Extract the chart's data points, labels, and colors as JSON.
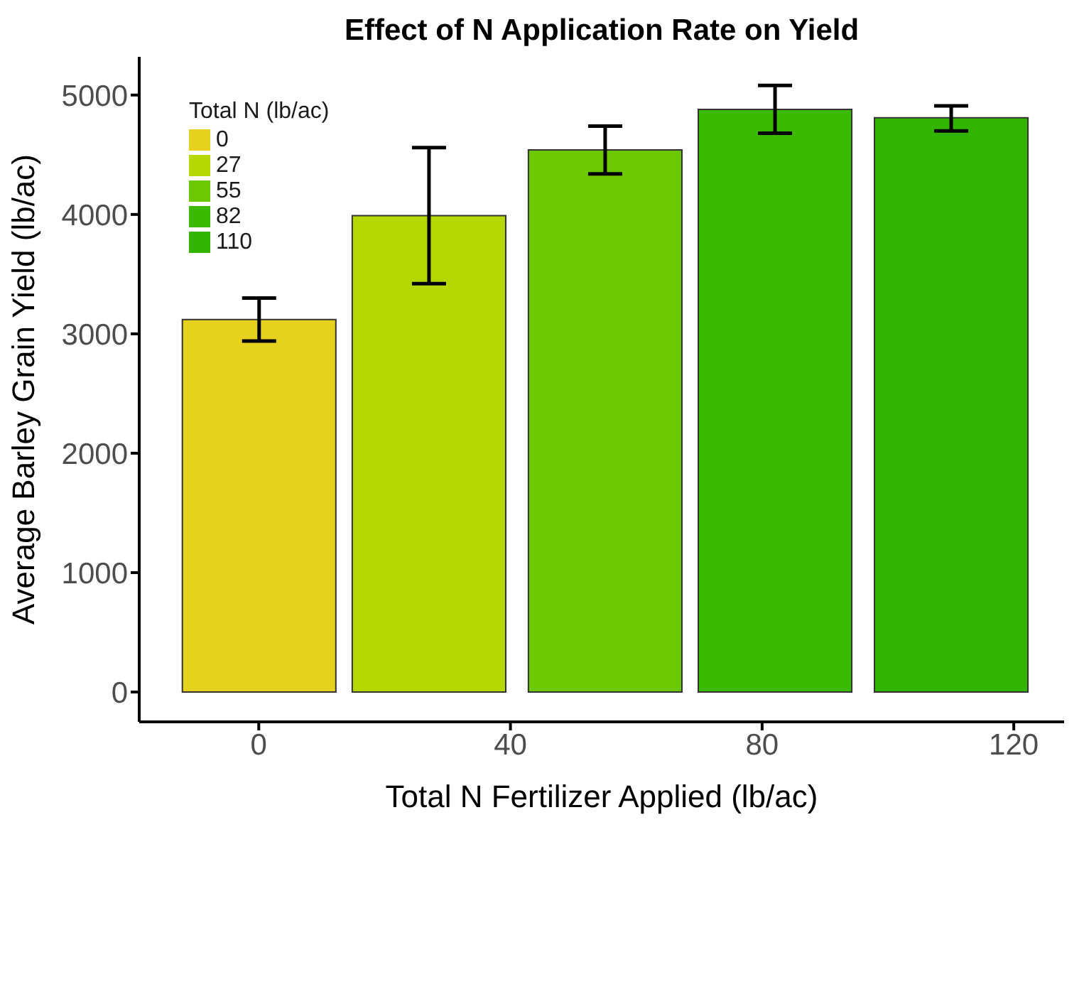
{
  "chart_data": {
    "type": "bar",
    "title": "Effect of N Application Rate on Yield",
    "xlabel": "Total N Fertilizer Applied (lb/ac)",
    "ylabel": "Average Barley Grain Yield (lb/ac)",
    "legend_title": "Total N (lb/ac)",
    "legend": "top left",
    "grid": false,
    "series": [
      {
        "name": "0",
        "color": "#e5d11e",
        "x": [
          0
        ],
        "values": [
          3120
        ],
        "errors": [
          [
            2940,
            3300
          ]
        ]
      },
      {
        "name": "27",
        "color": "#b4d800",
        "x": [
          27
        ],
        "values": [
          3990
        ],
        "errors": [
          [
            3420,
            4560
          ]
        ]
      },
      {
        "name": "55",
        "color": "#6cc800",
        "x": [
          55
        ],
        "values": [
          4540
        ],
        "errors": [
          [
            4340,
            4740
          ]
        ]
      },
      {
        "name": "82",
        "color": "#3cba00",
        "x": [
          82
        ],
        "values": [
          4880
        ],
        "errors": [
          [
            4680,
            5080
          ]
        ]
      },
      {
        "name": "110",
        "color": "#33b500",
        "x": [
          110
        ],
        "values": [
          4810
        ],
        "errors": [
          [
            4700,
            4910
          ]
        ]
      }
    ],
    "xlim": [
      -19,
      128
    ],
    "xticks": [
      0,
      40,
      80,
      120
    ],
    "ylim": [
      -250,
      5320
    ],
    "yticks": [
      0,
      1000,
      2000,
      3000,
      4000,
      5000
    ]
  }
}
